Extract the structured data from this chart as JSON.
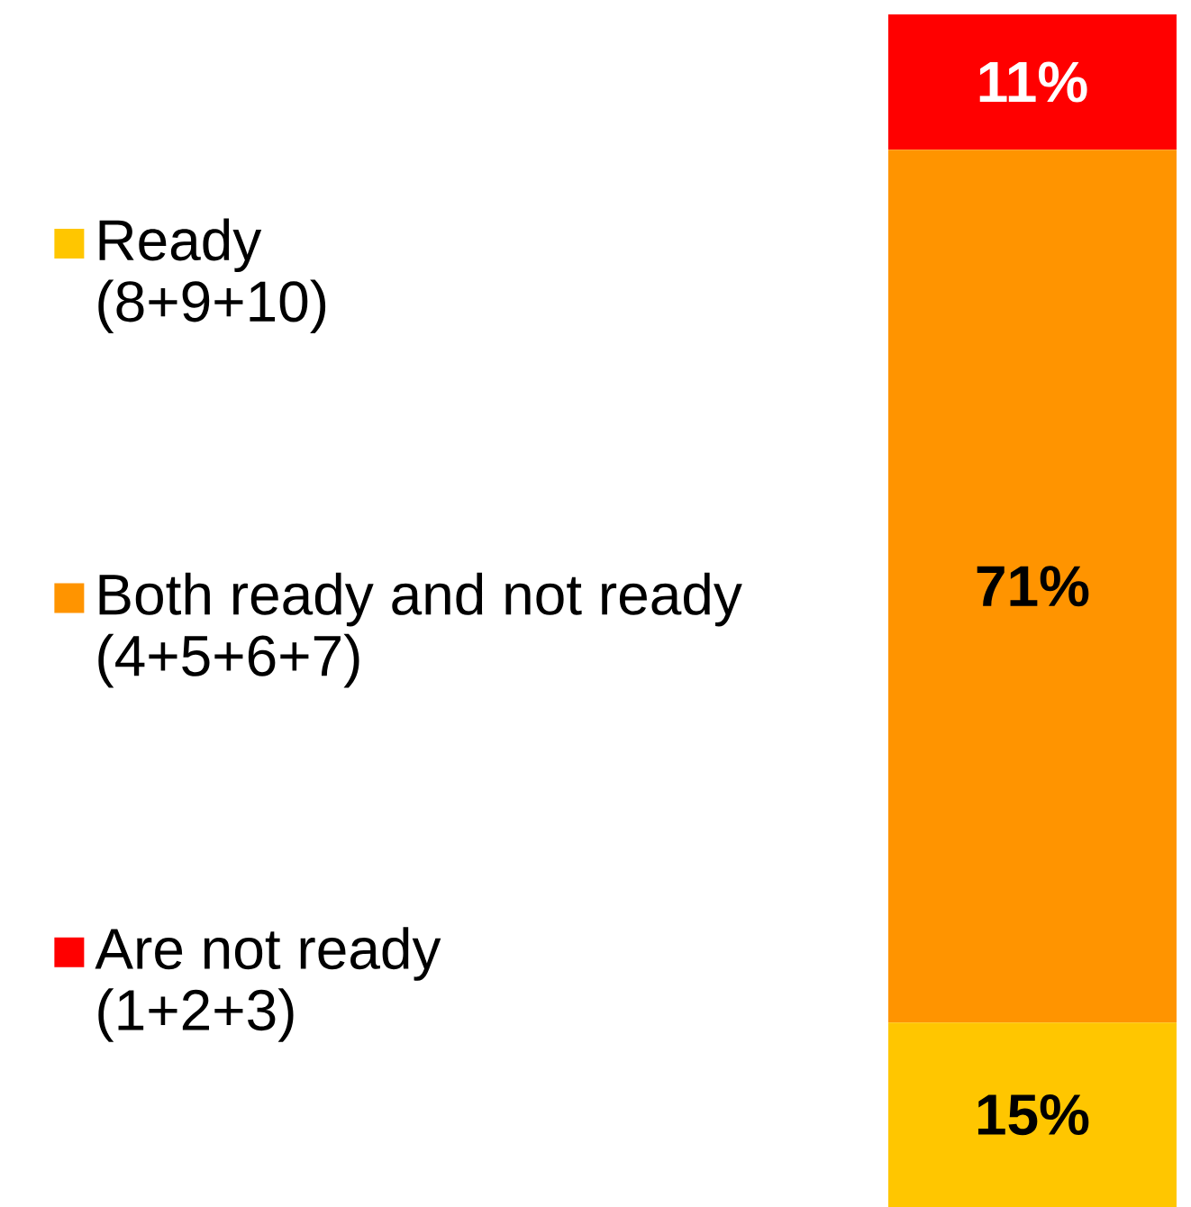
{
  "chart_data": {
    "type": "bar",
    "stacked": true,
    "categories": [
      null
    ],
    "legend": "left",
    "series": [
      {
        "name": "Ready\n(8+9+10)",
        "color": "#ffc600",
        "values": [
          15
        ],
        "value_labels": [
          "15%"
        ]
      },
      {
        "name": "Both ready and not ready\n(4+5+6+7)",
        "color": "#ff9400",
        "values": [
          71
        ],
        "value_labels": [
          "71%"
        ]
      },
      {
        "name": "Are not ready\n(1+2+3)",
        "color": "#ff0000",
        "values": [
          11
        ],
        "value_labels": [
          "11%"
        ]
      }
    ]
  }
}
